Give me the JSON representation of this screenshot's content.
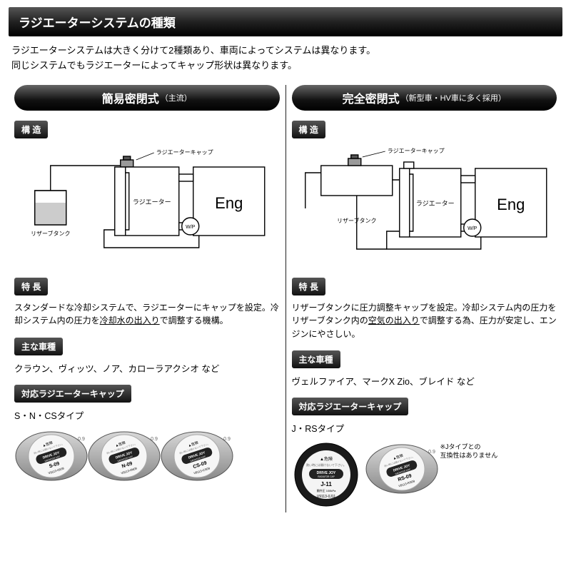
{
  "header": {
    "title": "ラジエーターシステムの種類"
  },
  "intro": {
    "line1": "ラジエーターシステムは大きく分けて2種類あり、車両によってシステムは異なります。",
    "line2": "同じシステムでもラジエーターによってキャップ形状は異なります。"
  },
  "left": {
    "pill_main": "簡易密閉式",
    "pill_sub": "（主流）",
    "structure_label": "構 造",
    "diagram": {
      "cap_label": "ラジエーターキャップ",
      "radiator_label": "ラジエーター",
      "engine_label": "Eng",
      "reserve_label": "リザーブタンク",
      "wp_label": "W/P",
      "stroke": "#000000",
      "reserve_fill": "#cccccc"
    },
    "feature_label": "特 長",
    "feature_text_a": "スタンダードな冷却システムで、ラジエーターにキャップを設定。冷却システム内の圧力を",
    "feature_text_u": "冷却水の出入り",
    "feature_text_b": "で調整する機構。",
    "models_label": "主な車種",
    "models_text": "クラウン、ヴィッツ、ノア、カローラアクシオ など",
    "caps_label": "対応ラジエーターキャップ",
    "caps_type": "S・N・CSタイプ",
    "caps": [
      {
        "code": "S-09",
        "part": "V9113-0S09",
        "shape": "oval",
        "body_color": "#b8b8b8"
      },
      {
        "code": "N-09",
        "part": "V9113-0N09",
        "shape": "oval",
        "body_color": "#b8b8b8"
      },
      {
        "code": "CS-09",
        "part": "V9113-CS09",
        "shape": "oval",
        "body_color": "#b8b8b8"
      }
    ],
    "cap_brand": "DRIVE JOY",
    "cap_subbrand": "RADIATOR CAP",
    "cap_warning": "▲危険",
    "cap_pressure": "0.9"
  },
  "right": {
    "pill_main": "完全密閉式",
    "pill_sub": "（新型車・HV車に多く採用）",
    "structure_label": "構 造",
    "diagram": {
      "cap_label": "ラジエーターキャップ",
      "radiator_label": "ラジエーター",
      "engine_label": "Eng",
      "reserve_label": "リザーブタンク",
      "wp_label": "W/P",
      "stroke": "#000000"
    },
    "feature_label": "特 長",
    "feature_text_a": "リザーブタンクに圧力調整キャップを設定。冷却システム内の圧力をリザーブタンク内の",
    "feature_text_u": "空気の出入り",
    "feature_text_b": "で調整する為、圧力が安定し、エンジンにやさしい。",
    "models_label": "主な車種",
    "models_text": "ヴェルファイア、マークX Zio、ブレイド など",
    "caps_label": "対応ラジエーターキャップ",
    "caps_type": "J・RSタイプ",
    "caps": [
      {
        "code": "J-11",
        "part": "V9113-0J11",
        "shape": "round",
        "body_color": "#1a1a1a",
        "pressure_kpa": "108kPa"
      },
      {
        "code": "RS-09",
        "part": "V9113-RS09",
        "shape": "oval",
        "body_color": "#b8b8b8"
      }
    ],
    "cap_brand": "DRIVE JOY",
    "cap_subbrand": "RADIATOR CAP",
    "cap_warning": "▲危険",
    "cap_pressure": "0.9",
    "footnote_l1": "※Jタイプとの",
    "footnote_l2": "  互換性はありません"
  }
}
